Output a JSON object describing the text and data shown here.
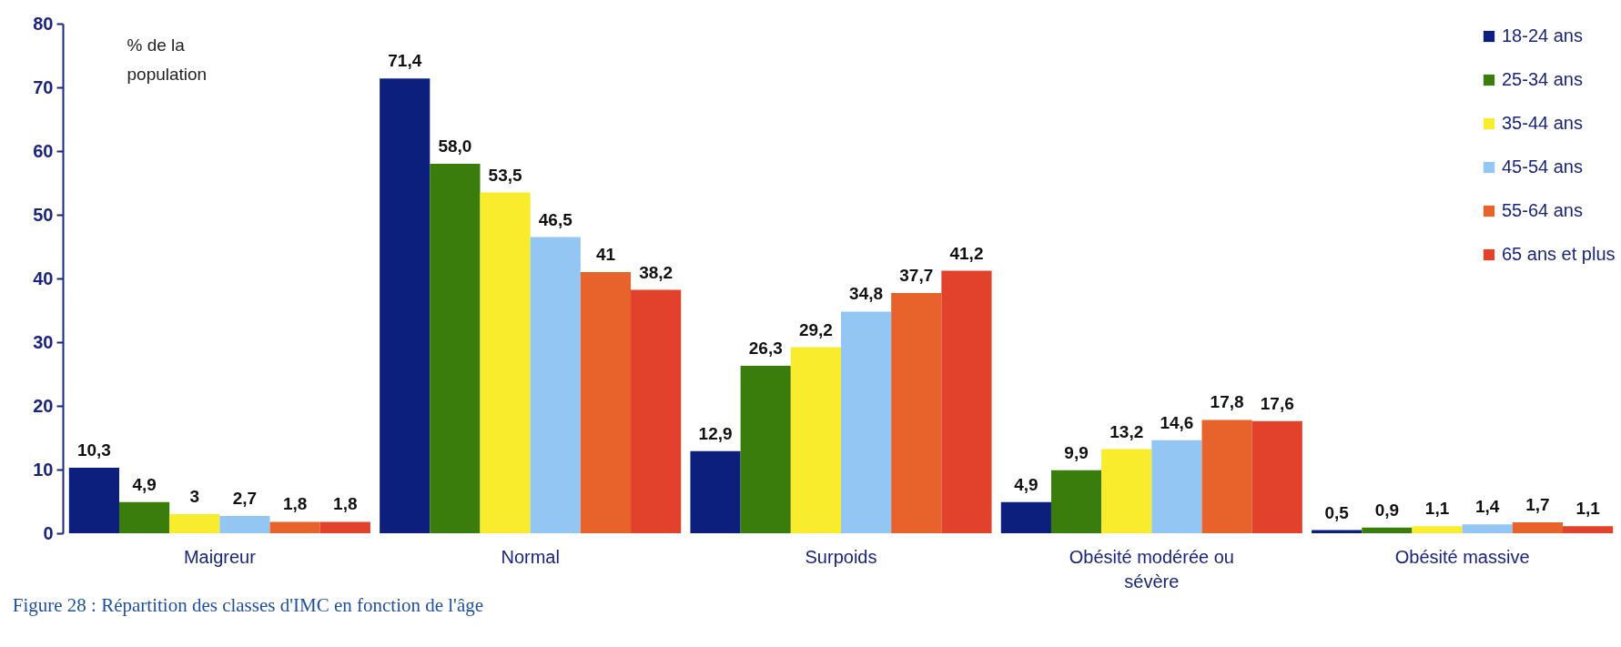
{
  "chart_data": {
    "type": "bar",
    "ylabel": "% de la population",
    "annotations": [
      "Figure 28 : Répartition des classes d'IMC en fonction de l'âge"
    ],
    "categories": [
      "Maigreur",
      "Normal",
      "Surpoids",
      "Obésité modérée ou sévère",
      "Obésité massive"
    ],
    "series": [
      {
        "name": "18-24 ans",
        "color": "#0d1f7c",
        "values": [
          10.3,
          71.4,
          12.9,
          4.9,
          0.5
        ],
        "value_labels": [
          "10,3",
          "71,4",
          "12,9",
          "4,9",
          "0,5"
        ]
      },
      {
        "name": "25-34 ans",
        "color": "#3a7d0c",
        "values": [
          4.9,
          58.0,
          26.3,
          9.9,
          0.9
        ],
        "value_labels": [
          "4,9",
          "58,0",
          "26,3",
          "9,9",
          "0,9"
        ]
      },
      {
        "name": "35-44 ans",
        "color": "#f8ec2c",
        "values": [
          3,
          53.5,
          29.2,
          13.2,
          1.1
        ],
        "value_labels": [
          "3",
          "53,5",
          "29,2",
          "13,2",
          "1,1"
        ]
      },
      {
        "name": "45-54 ans",
        "color": "#94c6f4",
        "values": [
          2.7,
          46.5,
          34.8,
          14.6,
          1.4
        ],
        "value_labels": [
          "2,7",
          "46,5",
          "34,8",
          "14,6",
          "1,4"
        ]
      },
      {
        "name": "55-64 ans",
        "color": "#e8622c",
        "values": [
          1.8,
          41,
          37.7,
          17.8,
          1.7
        ],
        "value_labels": [
          "1,8",
          "41",
          "37,7",
          "17,8",
          "1,7"
        ]
      },
      {
        "name": "65 ans et plus",
        "color": "#e2422c",
        "values": [
          1.8,
          38.2,
          41.2,
          17.6,
          1.1
        ],
        "value_labels": [
          "1,8",
          "38,2",
          "41,2",
          "17,6",
          "1,1"
        ]
      }
    ],
    "ylim": [
      0,
      80
    ],
    "yticks": [
      0,
      10,
      20,
      30,
      40,
      50,
      60,
      70,
      80
    ],
    "legend": "top right"
  }
}
